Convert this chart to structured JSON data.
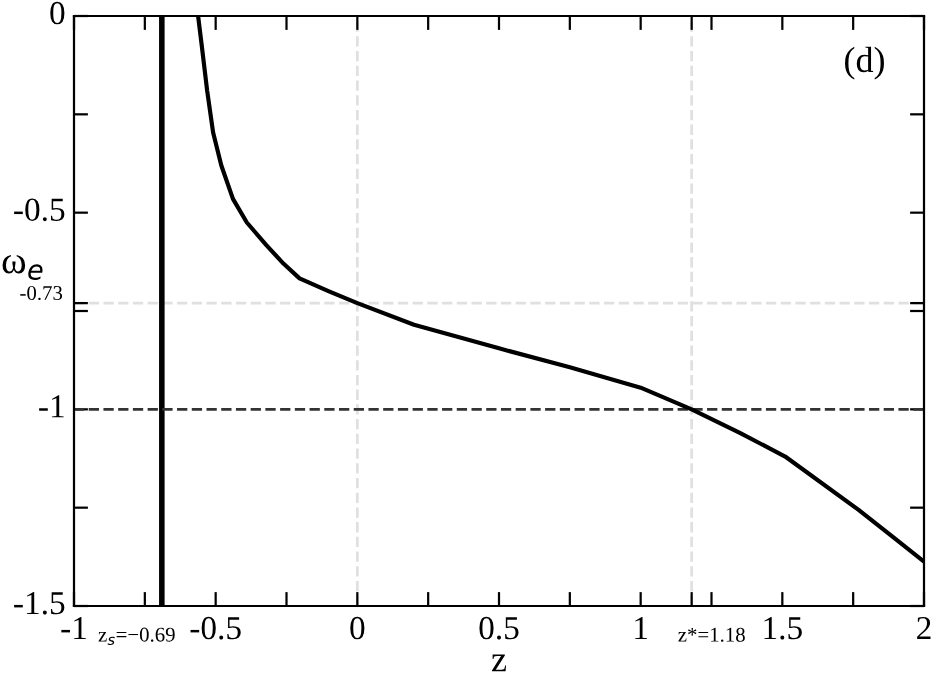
{
  "chart_data": {
    "type": "line",
    "xlabel": "z",
    "ylabel": "ω$_{e}$",
    "annotations": [
      "(d)"
    ],
    "series": [
      {
        "color": "#000000",
        "x": [
          -0.562,
          -0.55,
          -0.53,
          -0.509,
          -0.48,
          -0.439,
          -0.39,
          -0.322,
          -0.26,
          -0.204,
          -0.1,
          0,
          0.2,
          0.5,
          0.75,
          1.0,
          1.18,
          1.35,
          1.51,
          1.768,
          1.9,
          2
        ],
        "values": [
          0,
          -0.07,
          -0.19,
          -0.296,
          -0.38,
          -0.465,
          -0.525,
          -0.582,
          -0.63,
          -0.667,
          -0.7,
          -0.73,
          -0.785,
          -0.845,
          -0.893,
          -0.945,
          -1,
          -1.06,
          -1.12,
          -1.255,
          -1.33,
          -1.387
        ]
      }
    ],
    "xlim": [
      -1,
      2
    ],
    "ylim": [
      -1.5,
      0
    ],
    "xticks": [
      -1,
      {
        "value": -0.75,
        "label": null
      },
      -0.5,
      {
        "value": -0.25,
        "label": null
      },
      0,
      {
        "value": 0.25,
        "label": null
      },
      0.5,
      {
        "value": 0.75,
        "label": null
      },
      1,
      {
        "value": 1.18,
        "label": null
      },
      {
        "value": 1.25,
        "label": null
      },
      1.5,
      {
        "value": 1.75,
        "label": null
      },
      2
    ],
    "yticks": [
      -1.5,
      {
        "value": -1.25,
        "label": null
      },
      -1,
      {
        "value": -0.75,
        "label": null
      },
      {
        "value": -0.73,
        "label": null
      },
      -0.5,
      {
        "value": -0.25,
        "label": null
      },
      0
    ],
    "ref_lines": [
      {
        "axis": "x",
        "value": -0.69,
        "color": "#000000",
        "line_style": "solid",
        "label": "z$_{s}$=−0.69"
      },
      {
        "axis": "y",
        "value": -1,
        "color": "#333333",
        "line_style": "dashed"
      },
      {
        "axis": "y",
        "value": -0.73,
        "color": "#e0e0e0",
        "line_style": "dashed",
        "label": "-0.73"
      },
      {
        "axis": "x",
        "value": 0,
        "color": "#e0e0e0",
        "line_style": "dashed"
      },
      {
        "axis": "x",
        "value": 1.18,
        "color": "#e0e0e0",
        "line_style": "dashed",
        "label": "z*=1.18"
      }
    ],
    "grid": false,
    "legend": false
  }
}
